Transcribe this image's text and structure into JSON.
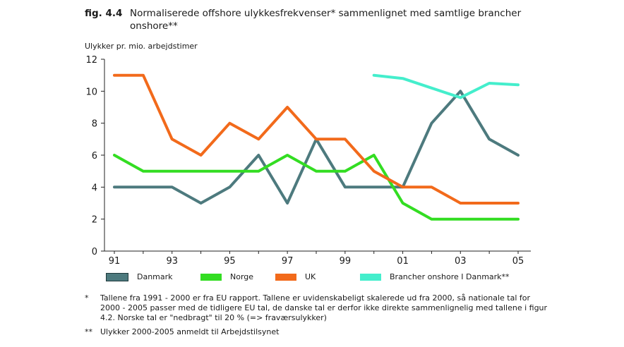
{
  "figure": {
    "label": "fig. 4.4",
    "title": "Normaliserede offshore ulykkesfrekvenser* sammenlignet med samtlige brancher onshore**"
  },
  "chart_data": {
    "type": "line",
    "title": "Normaliserede offshore ulykkesfrekvenser* sammenlignet med samtlige brancher onshore**",
    "ylabel": "Ulykker pr. mio. arbejdstimer",
    "xlabel": "",
    "x": [
      1991,
      1992,
      1993,
      1994,
      1995,
      1996,
      1997,
      1998,
      1999,
      2000,
      2001,
      2002,
      2003,
      2004,
      2005
    ],
    "xticks": [
      "91",
      "93",
      "95",
      "97",
      "99",
      "01",
      "03",
      "05"
    ],
    "xlim": [
      1991,
      2005
    ],
    "ylim": [
      0,
      12
    ],
    "yticks": [
      "0",
      "2",
      "4",
      "6",
      "8",
      "10",
      "12"
    ],
    "grid": false,
    "legend_position": "bottom",
    "series": [
      {
        "name": "Danmark",
        "color": "#4d7a7e",
        "x": [
          1991,
          1992,
          1993,
          1994,
          1995,
          1996,
          1997,
          1998,
          1999,
          2000,
          2001,
          2002,
          2003,
          2004,
          2005
        ],
        "values": [
          4,
          4,
          4,
          3,
          4,
          6,
          3,
          7,
          4,
          4,
          4,
          8,
          10,
          7,
          6
        ]
      },
      {
        "name": "Norge",
        "color": "#33dd22",
        "x": [
          1991,
          1992,
          1993,
          1994,
          1995,
          1996,
          1997,
          1998,
          1999,
          2000,
          2001,
          2002,
          2003,
          2004,
          2005
        ],
        "values": [
          6,
          5,
          5,
          5,
          5,
          5,
          6,
          5,
          5,
          6,
          3,
          2,
          2,
          2,
          2
        ]
      },
      {
        "name": "UK",
        "color": "#f26a1b",
        "x": [
          1991,
          1992,
          1993,
          1994,
          1995,
          1996,
          1997,
          1998,
          1999,
          2000,
          2001,
          2002,
          2003,
          2004,
          2005
        ],
        "values": [
          11,
          11,
          7,
          6,
          8,
          7,
          9,
          7,
          7,
          5,
          4,
          4,
          3,
          3,
          3
        ]
      },
      {
        "name": "Brancher onshore I Danmark**",
        "color": "#44eecc",
        "x": [
          2000,
          2001,
          2002,
          2003,
          2004,
          2005
        ],
        "values": [
          11,
          10.8,
          10.2,
          9.6,
          10.5,
          10.4
        ]
      }
    ]
  },
  "notes": [
    {
      "mark": "*",
      "text": "Tallene fra 1991 - 2000 er fra EU rapport. Tallene er uvidenskabeligt skalerede ud fra 2000, så nationale tal for 2000 - 2005 passer med de tidligere EU tal, de danske tal er derfor ikke direkte sammenlignelig med tallene i figur 4.2. Norske tal er \"nedbragt\" til 20 % (=> fraværsulykker)"
    },
    {
      "mark": "**",
      "text": "Ulykker 2000-2005 anmeldt til Arbejdstilsynet"
    }
  ]
}
